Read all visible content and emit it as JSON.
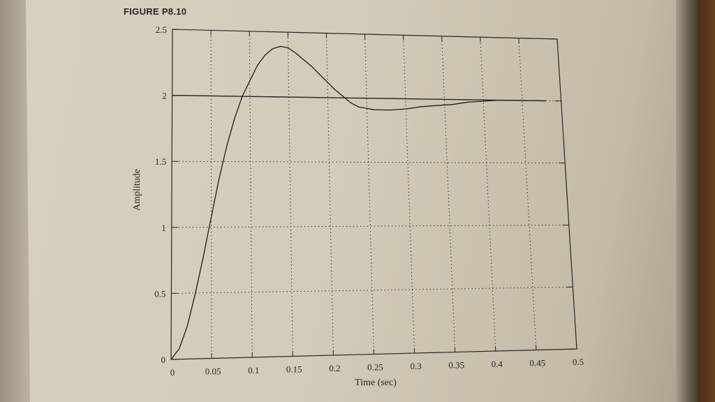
{
  "figure_label": "FIGURE P8.10",
  "chart_data": {
    "type": "line",
    "title": "",
    "xlabel": "Time (sec)",
    "ylabel": "Amplitude",
    "xlim": [
      0,
      0.5
    ],
    "ylim": [
      0,
      2.5
    ],
    "xticks": [
      0,
      0.05,
      0.1,
      0.15,
      0.2,
      0.25,
      0.3,
      0.35,
      0.4,
      0.45,
      0.5
    ],
    "xtick_labels": [
      "0",
      "0.05",
      "0.1",
      "0.15",
      "0.2",
      "0.25",
      "0.3",
      "0.35",
      "0.4",
      "0.45",
      "0.5"
    ],
    "yticks": [
      0,
      0.5,
      1,
      1.5,
      2,
      2.5
    ],
    "ytick_labels": [
      "0",
      "0.5",
      "1",
      "1.5",
      "2",
      "2.5"
    ],
    "grid": true,
    "series": [
      {
        "x": [
          0,
          0.01,
          0.02,
          0.03,
          0.04,
          0.05,
          0.06,
          0.07,
          0.08,
          0.09,
          0.1,
          0.11,
          0.12,
          0.13,
          0.14,
          0.15,
          0.16,
          0.17,
          0.18,
          0.19,
          0.2,
          0.21,
          0.22,
          0.23,
          0.24,
          0.25,
          0.26,
          0.27,
          0.28,
          0.3,
          0.32,
          0.34,
          0.36,
          0.38,
          0.4,
          0.42,
          0.44,
          0.46,
          0.48
        ],
        "y": [
          0,
          0.08,
          0.25,
          0.5,
          0.78,
          1.08,
          1.37,
          1.62,
          1.83,
          2.0,
          2.12,
          2.24,
          2.32,
          2.37,
          2.39,
          2.38,
          2.34,
          2.29,
          2.24,
          2.18,
          2.12,
          2.06,
          2.01,
          1.96,
          1.93,
          1.92,
          1.91,
          1.91,
          1.91,
          1.92,
          1.94,
          1.95,
          1.96,
          1.98,
          1.99,
          2.0,
          2.0,
          2.0,
          2.0
        ]
      },
      {
        "x": [
          0,
          0.48
        ],
        "y": [
          2,
          2
        ]
      }
    ]
  }
}
